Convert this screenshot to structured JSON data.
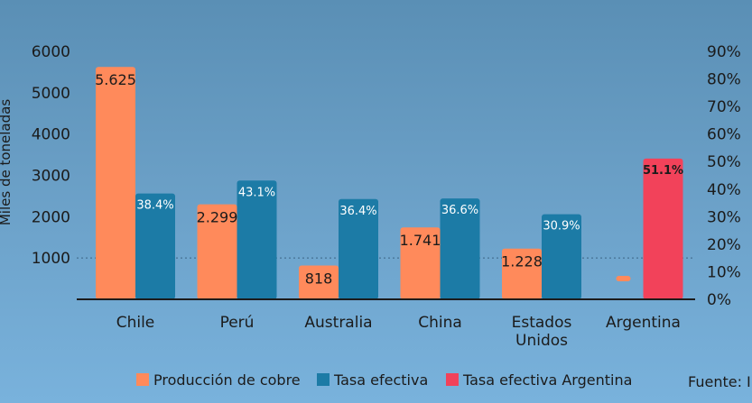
{
  "chart_data": {
    "type": "bar",
    "categories": [
      [
        "Chile"
      ],
      [
        "Perú"
      ],
      [
        "Australia"
      ],
      [
        "China"
      ],
      [
        "Estados",
        "Unidos"
      ],
      [
        "Argentina"
      ]
    ],
    "ylabel": "Miles de toneladas",
    "ylim": [
      0,
      6000
    ],
    "y_ticks": [
      "6000",
      "5000",
      "4000",
      "3000",
      "2000",
      "1000"
    ],
    "y2lim": [
      0,
      90
    ],
    "y2_ticks": [
      "90%",
      "80%",
      "70%",
      "60%",
      "50%",
      "40%",
      "30%",
      "20%",
      "10%",
      "0%"
    ],
    "reference_line_y": 1000,
    "series": [
      {
        "name": "Producción de cobre",
        "axis": "left",
        "color": "#ff8a5b",
        "values": [
          5625,
          2299,
          818,
          1741,
          1228,
          80
        ],
        "labels": [
          "5.625",
          "2.299",
          "818",
          "1.741",
          "1.228",
          ""
        ]
      },
      {
        "name": "Tasa efectiva",
        "axis": "right",
        "color": "#1c7ba6",
        "values": [
          38.4,
          43.1,
          36.4,
          36.6,
          30.9,
          null
        ],
        "labels": [
          "38.4%",
          "43.1%",
          "36.4%",
          "36.6%",
          "30.9%",
          ""
        ]
      },
      {
        "name": "Tasa efectiva Argentina",
        "axis": "right",
        "color": "#f2425a",
        "values": [
          null,
          null,
          null,
          null,
          null,
          51.1
        ],
        "labels": [
          "",
          "",
          "",
          "",
          "",
          "51.1%"
        ]
      }
    ],
    "legend_position": "bottom",
    "source": "Fuente: I"
  }
}
